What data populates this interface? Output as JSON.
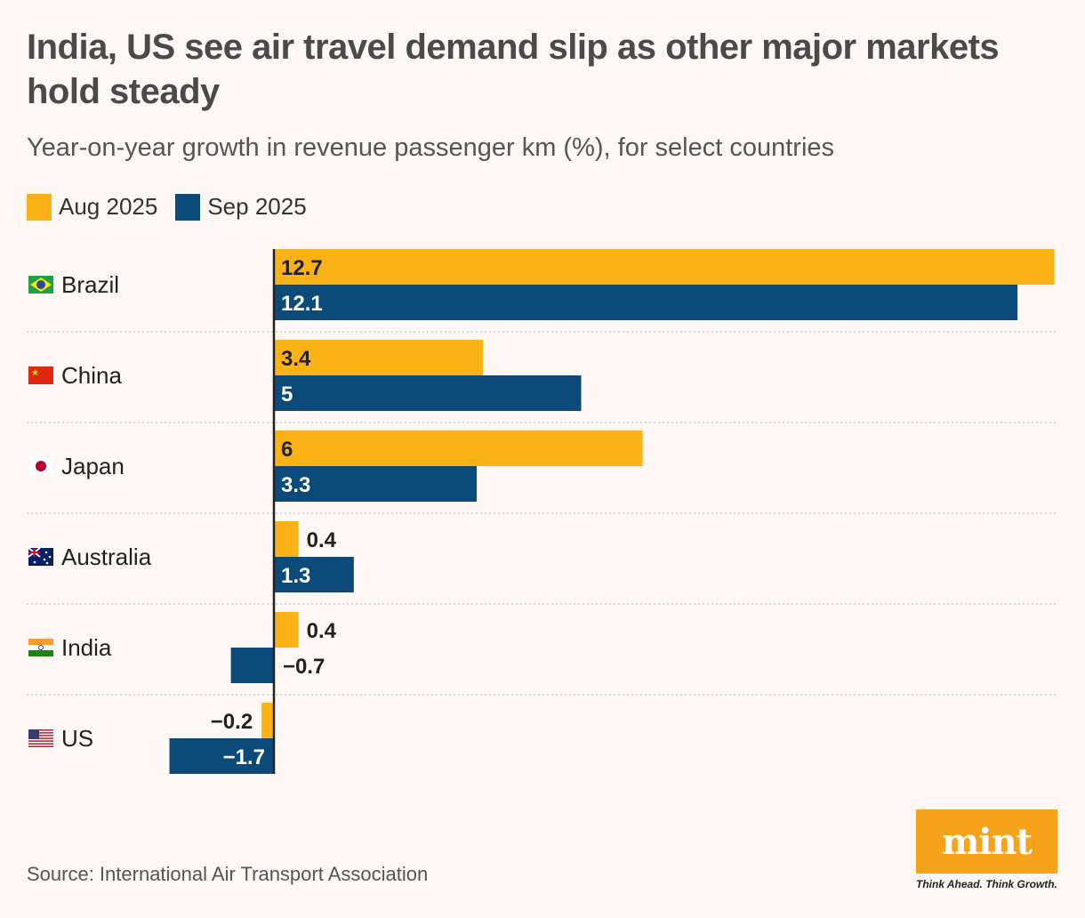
{
  "header": {
    "title": "India, US see air travel demand slip as other major markets hold steady",
    "subtitle": "Year-on-year growth in revenue passenger km (%), for select countries"
  },
  "legend": {
    "items": [
      {
        "label": "Aug 2025",
        "color": "#fbb217"
      },
      {
        "label": "Sep 2025",
        "color": "#0c4a7a"
      }
    ]
  },
  "chart_data": {
    "type": "bar",
    "orientation": "horizontal",
    "categories": [
      "Brazil",
      "China",
      "Japan",
      "Australia",
      "India",
      "US"
    ],
    "series": [
      {
        "name": "Aug 2025",
        "color": "#fbb217",
        "values": [
          12.7,
          3.4,
          6,
          0.4,
          0.4,
          -0.2
        ],
        "labels": [
          "12.7",
          "3.4",
          "6",
          "0.4",
          "0.4",
          "−0.2"
        ]
      },
      {
        "name": "Sep 2025",
        "color": "#0c4a7a",
        "values": [
          12.1,
          5,
          3.3,
          1.3,
          -0.7,
          -1.7
        ],
        "labels": [
          "12.1",
          "5",
          "3.3",
          "1.3",
          "−0.7",
          "−1.7"
        ]
      }
    ],
    "flag_icons": [
      "brazil-flag-icon",
      "china-flag-icon",
      "japan-flag-icon",
      "australia-flag-icon",
      "india-flag-icon",
      "us-flag-icon"
    ],
    "grid": false,
    "legend_position": "top-left"
  },
  "footer": {
    "source": "Source: International Air Transport Association",
    "logo_text": "mint",
    "tagline": "Think Ahead. Think Growth.",
    "logo_color": "#f7a21b"
  }
}
